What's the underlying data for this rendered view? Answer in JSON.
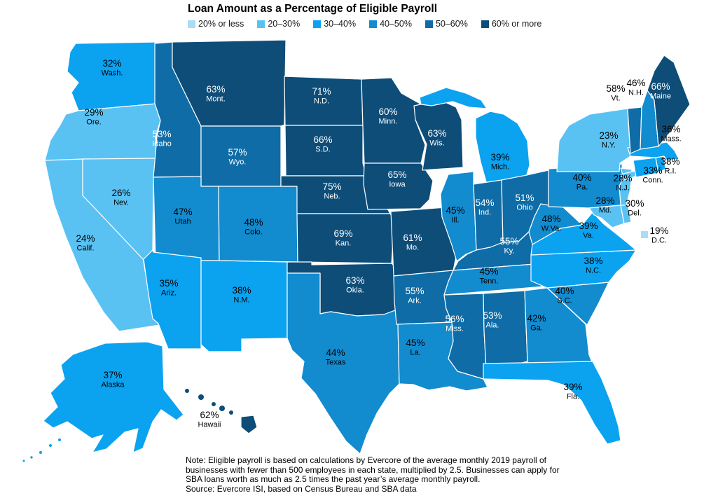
{
  "title": "Loan Amount as a Percentage of Eligible Payroll",
  "legend": {
    "items": [
      {
        "label": "20% or less",
        "color": "#a9dcf6"
      },
      {
        "label": "20–30%",
        "color": "#5ac2f3"
      },
      {
        "label": "30–40%",
        "color": "#0ba2f0"
      },
      {
        "label": "40–50%",
        "color": "#128bcf"
      },
      {
        "label": "50–60%",
        "color": "#0f6ca6"
      },
      {
        "label": "60% or more",
        "color": "#0e4d78"
      }
    ]
  },
  "note_lines": [
    "Note: Eligible payroll is based on calculations by Evercore of the average monthly 2019 payroll of",
    "businesses with fewer than 500 employees in each state, multiplied by 2.5. Businesses can apply for",
    "SBA loans worth as much as 2.5 times the past year’s average monthly payroll."
  ],
  "source": "Source: Evercore ISI, based on Census Bureau and SBA data",
  "chart_data": {
    "type": "choropleth",
    "title": "Loan Amount as a Percentage of Eligible Payroll",
    "unit": "% of eligible payroll",
    "legend_position": "top",
    "states": [
      {
        "state": "Washington",
        "abbr": "Wash.",
        "value": 32,
        "display": "32%",
        "bucket": "30–40%"
      },
      {
        "state": "Oregon",
        "abbr": "Ore.",
        "value": 29,
        "display": "29%",
        "bucket": "20–30%"
      },
      {
        "state": "California",
        "abbr": "Calif.",
        "value": 24,
        "display": "24%",
        "bucket": "20–30%"
      },
      {
        "state": "Nevada",
        "abbr": "Nev.",
        "value": 26,
        "display": "26%",
        "bucket": "20–30%"
      },
      {
        "state": "Idaho",
        "abbr": "Idaho",
        "value": 53,
        "display": "53%",
        "bucket": "50–60%"
      },
      {
        "state": "Montana",
        "abbr": "Mont.",
        "value": 63,
        "display": "63%",
        "bucket": "60% or more"
      },
      {
        "state": "Wyoming",
        "abbr": "Wyo.",
        "value": 57,
        "display": "57%",
        "bucket": "50–60%"
      },
      {
        "state": "Utah",
        "abbr": "Utah",
        "value": 47,
        "display": "47%",
        "bucket": "40–50%"
      },
      {
        "state": "Arizona",
        "abbr": "Ariz.",
        "value": 35,
        "display": "35%",
        "bucket": "30–40%"
      },
      {
        "state": "New Mexico",
        "abbr": "N.M.",
        "value": 38,
        "display": "38%",
        "bucket": "30–40%"
      },
      {
        "state": "Colorado",
        "abbr": "Colo.",
        "value": 48,
        "display": "48%",
        "bucket": "40–50%"
      },
      {
        "state": "North Dakota",
        "abbr": "N.D.",
        "value": 71,
        "display": "71%",
        "bucket": "60% or more"
      },
      {
        "state": "South Dakota",
        "abbr": "S.D.",
        "value": 66,
        "display": "66%",
        "bucket": "60% or more"
      },
      {
        "state": "Nebraska",
        "abbr": "Neb.",
        "value": 75,
        "display": "75%",
        "bucket": "60% or more"
      },
      {
        "state": "Kansas",
        "abbr": "Kan.",
        "value": 69,
        "display": "69%",
        "bucket": "60% or more"
      },
      {
        "state": "Oklahoma",
        "abbr": "Okla.",
        "value": 63,
        "display": "63%",
        "bucket": "60% or more"
      },
      {
        "state": "Texas",
        "abbr": "Texas",
        "value": 44,
        "display": "44%",
        "bucket": "40–50%"
      },
      {
        "state": "Minnesota",
        "abbr": "Minn.",
        "value": 60,
        "display": "60%",
        "bucket": "60% or more"
      },
      {
        "state": "Iowa",
        "abbr": "Iowa",
        "value": 65,
        "display": "65%",
        "bucket": "60% or more"
      },
      {
        "state": "Missouri",
        "abbr": "Mo.",
        "value": 61,
        "display": "61%",
        "bucket": "60% or more"
      },
      {
        "state": "Arkansas",
        "abbr": "Ark.",
        "value": 55,
        "display": "55%",
        "bucket": "50–60%"
      },
      {
        "state": "Louisiana",
        "abbr": "La.",
        "value": 45,
        "display": "45%",
        "bucket": "40–50%"
      },
      {
        "state": "Wisconsin",
        "abbr": "Wis.",
        "value": 63,
        "display": "63%",
        "bucket": "60% or more"
      },
      {
        "state": "Illinois",
        "abbr": "Ill.",
        "value": 45,
        "display": "45%",
        "bucket": "40–50%"
      },
      {
        "state": "Michigan",
        "abbr": "Mich.",
        "value": 39,
        "display": "39%",
        "bucket": "30–40%"
      },
      {
        "state": "Indiana",
        "abbr": "Ind.",
        "value": 54,
        "display": "54%",
        "bucket": "50–60%"
      },
      {
        "state": "Ohio",
        "abbr": "Ohio",
        "value": 51,
        "display": "51%",
        "bucket": "50–60%"
      },
      {
        "state": "Kentucky",
        "abbr": "Ky.",
        "value": 55,
        "display": "55%",
        "bucket": "50–60%"
      },
      {
        "state": "Tennessee",
        "abbr": "Tenn.",
        "value": 45,
        "display": "45%",
        "bucket": "40–50%"
      },
      {
        "state": "Mississippi",
        "abbr": "Miss.",
        "value": 56,
        "display": "56%",
        "bucket": "50–60%"
      },
      {
        "state": "Alabama",
        "abbr": "Ala.",
        "value": 53,
        "display": "53%",
        "bucket": "50–60%"
      },
      {
        "state": "Georgia",
        "abbr": "Ga.",
        "value": 42,
        "display": "42%",
        "bucket": "40–50%"
      },
      {
        "state": "South Carolina",
        "abbr": "S.C.",
        "value": 40,
        "display": "40%",
        "bucket": "40–50%"
      },
      {
        "state": "North Carolina",
        "abbr": "N.C.",
        "value": 38,
        "display": "38%",
        "bucket": "30–40%"
      },
      {
        "state": "Virginia",
        "abbr": "Va.",
        "value": 39,
        "display": "39%",
        "bucket": "30–40%"
      },
      {
        "state": "West Virginia",
        "abbr": "W.Va.",
        "value": 48,
        "display": "48%",
        "bucket": "40–50%"
      },
      {
        "state": "Pennsylvania",
        "abbr": "Pa.",
        "value": 40,
        "display": "40%",
        "bucket": "40–50%"
      },
      {
        "state": "Maryland",
        "abbr": "Md.",
        "value": 28,
        "display": "28%",
        "bucket": "20–30%"
      },
      {
        "state": "Delaware",
        "abbr": "Del.",
        "value": 30,
        "display": "30%",
        "bucket": "20–30%"
      },
      {
        "state": "New Jersey",
        "abbr": "N.J.",
        "value": 28,
        "display": "28%",
        "bucket": "20–30%"
      },
      {
        "state": "New York",
        "abbr": "N.Y.",
        "value": 23,
        "display": "23%",
        "bucket": "20–30%"
      },
      {
        "state": "Connecticut",
        "abbr": "Conn.",
        "value": 33,
        "display": "33%",
        "bucket": "30–40%"
      },
      {
        "state": "Rhode Island",
        "abbr": "R.I.",
        "value": 38,
        "display": "38%",
        "bucket": "30–40%"
      },
      {
        "state": "Massachusetts",
        "abbr": "Mass.",
        "value": 36,
        "display": "36%",
        "bucket": "30–40%"
      },
      {
        "state": "Vermont",
        "abbr": "Vt.",
        "value": 58,
        "display": "58%",
        "bucket": "50–60%"
      },
      {
        "state": "New Hampshire",
        "abbr": "N.H.",
        "value": 46,
        "display": "46%",
        "bucket": "40–50%"
      },
      {
        "state": "Maine",
        "abbr": "Maine",
        "value": 66,
        "display": "66%",
        "bucket": "60% or more"
      },
      {
        "state": "Florida",
        "abbr": "Fla.",
        "value": 39,
        "display": "39%",
        "bucket": "30–40%"
      },
      {
        "state": "Alaska",
        "abbr": "Alaska",
        "value": 37,
        "display": "37%",
        "bucket": "30–40%"
      },
      {
        "state": "Hawaii",
        "abbr": "Hawaii",
        "value": 62,
        "display": "62%",
        "bucket": "60% or more"
      },
      {
        "state": "District of Columbia",
        "abbr": "D.C.",
        "value": 19,
        "display": "19%",
        "bucket": "20% or less"
      }
    ]
  }
}
